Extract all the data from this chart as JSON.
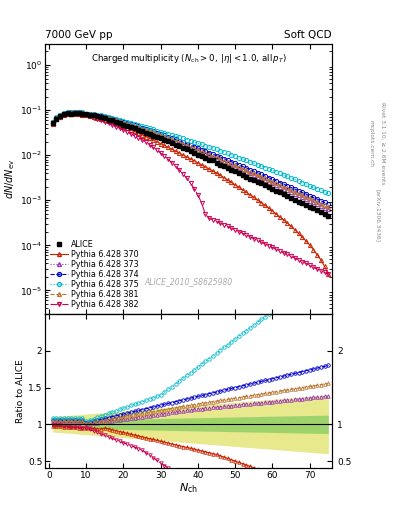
{
  "title_left": "7000 GeV pp",
  "title_right": "Soft QCD",
  "right_label1": "Rivet 3.1.10, ≥ 2.6M events",
  "right_label2": "[arXiv:1306.3436]",
  "right_label3": "mcplots.cern.ch",
  "watermark": "ALICE_2010_S8625980",
  "ylabel_main": "dN/dN_{ev}",
  "ylabel_ratio": "Ratio to ALICE",
  "xlabel": "N_{ch}",
  "ylim_main": [
    3e-06,
    3.0
  ],
  "ylim_ratio": [
    0.4,
    2.5
  ],
  "xlim": [
    -1,
    76
  ],
  "series": [
    {
      "label": "ALICE",
      "color": "#000000",
      "marker": "s",
      "ls": "none",
      "lw": 1.0,
      "ms": 3.5
    },
    {
      "label": "Pythia 6.428 370",
      "color": "#cc2200",
      "marker": "^",
      "ls": "-",
      "lw": 0.8,
      "ms": 3.0
    },
    {
      "label": "Pythia 6.428 373",
      "color": "#9933bb",
      "marker": "^",
      "ls": ":",
      "lw": 0.8,
      "ms": 3.0
    },
    {
      "label": "Pythia 6.428 374",
      "color": "#0000cc",
      "marker": "o",
      "ls": "--",
      "lw": 0.8,
      "ms": 3.0
    },
    {
      "label": "Pythia 6.428 375",
      "color": "#00bbcc",
      "marker": "o",
      "ls": ":",
      "lw": 0.8,
      "ms": 3.0
    },
    {
      "label": "Pythia 6.428 381",
      "color": "#bb7733",
      "marker": "^",
      "ls": "--",
      "lw": 0.8,
      "ms": 3.0
    },
    {
      "label": "Pythia 6.428 382",
      "color": "#cc0055",
      "marker": "v",
      "ls": "-.",
      "lw": 0.8,
      "ms": 3.0
    }
  ],
  "band_green": {
    "color": "#44bb44",
    "alpha": 0.45
  },
  "band_yellow": {
    "color": "#cccc00",
    "alpha": 0.45
  },
  "bg_color": "#ffffff"
}
